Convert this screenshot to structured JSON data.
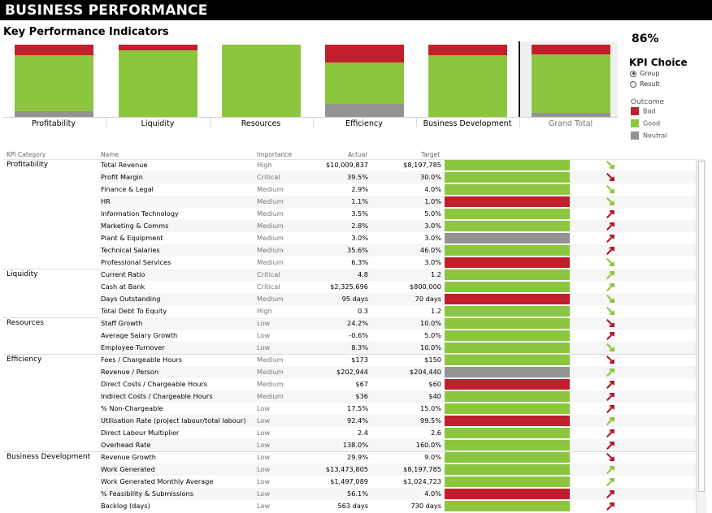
{
  "app": {
    "title": "BUSINESS PERFORMANCE"
  },
  "summary": {
    "heading": "Key Performance Indicators",
    "overall_score": "86%",
    "colors": {
      "bad": "#c11f2e",
      "good": "#8cc63f",
      "neutral": "#939393"
    },
    "bars": [
      {
        "label": "Profitability",
        "bad": 0.15,
        "good": 0.77,
        "neutral": 0.08
      },
      {
        "label": "Liquidity",
        "bad": 0.08,
        "good": 0.92,
        "neutral": 0.0
      },
      {
        "label": "Resources",
        "bad": 0.0,
        "good": 1.0,
        "neutral": 0.0
      },
      {
        "label": "Efficiency",
        "bad": 0.25,
        "good": 0.57,
        "neutral": 0.18
      },
      {
        "label": "Business Development",
        "bad": 0.15,
        "good": 0.85,
        "neutral": 0.0
      },
      {
        "label": "Grand Total",
        "bad": 0.14,
        "good": 0.8,
        "neutral": 0.06
      }
    ]
  },
  "kpi_choice": {
    "title": "KPI Choice",
    "options": [
      {
        "label": "Group",
        "selected": true
      },
      {
        "label": "Result",
        "selected": false
      }
    ]
  },
  "outcome_legend": {
    "title": "Outcome",
    "items": [
      {
        "label": "Bad",
        "color": "#c11f2e"
      },
      {
        "label": "Good",
        "color": "#8cc63f"
      },
      {
        "label": "Neutral",
        "color": "#939393"
      }
    ]
  },
  "table": {
    "columns": {
      "category": "KPI Category",
      "name": "Name",
      "importance": "Importance",
      "actual": "Actual",
      "target": "Target"
    },
    "groups": [
      {
        "category": "Profitability",
        "rows": [
          {
            "name": "Total Revenue",
            "importance": "High",
            "actual": "$10,009,837",
            "target": "$8,197,785",
            "status": "good",
            "trend": "down-green"
          },
          {
            "name": "Profit Margin",
            "importance": "Critical",
            "actual": "39.5%",
            "target": "30.0%",
            "status": "good",
            "trend": "down-red"
          },
          {
            "name": "Finance & Legal",
            "importance": "Medium",
            "actual": "2.9%",
            "target": "4.0%",
            "status": "good",
            "trend": "down-green"
          },
          {
            "name": "HR",
            "importance": "Medium",
            "actual": "1.1%",
            "target": "1.0%",
            "status": "bad",
            "trend": "down-green"
          },
          {
            "name": "Information Technology",
            "importance": "Medium",
            "actual": "3.5%",
            "target": "5.0%",
            "status": "good",
            "trend": "up-red"
          },
          {
            "name": "Marketing & Comms",
            "importance": "Medium",
            "actual": "2.8%",
            "target": "3.0%",
            "status": "good",
            "trend": "up-red"
          },
          {
            "name": "Plant & Equipment",
            "importance": "Medium",
            "actual": "3.0%",
            "target": "3.0%",
            "status": "neutral",
            "trend": "up-red"
          },
          {
            "name": "Technical Salaries",
            "importance": "Medium",
            "actual": "35.6%",
            "target": "46.0%",
            "status": "good",
            "trend": "up-red"
          },
          {
            "name": "Professional Services",
            "importance": "Medium",
            "actual": "6.3%",
            "target": "3.0%",
            "status": "bad",
            "trend": "down-green"
          }
        ]
      },
      {
        "category": "Liquidity",
        "rows": [
          {
            "name": "Current Ratio",
            "importance": "Critical",
            "actual": "4.8",
            "target": "1.2",
            "status": "good",
            "trend": "up-green"
          },
          {
            "name": "Cash at Bank",
            "importance": "Critical",
            "actual": "$2,325,696",
            "target": "$800,000",
            "status": "good",
            "trend": "up-green"
          },
          {
            "name": "Days Outstanding",
            "importance": "Medium",
            "actual": "95 days",
            "target": "70 days",
            "status": "bad",
            "trend": "down-green"
          },
          {
            "name": "Total Debt To Equity",
            "importance": "High",
            "actual": "0.3",
            "target": "1.2",
            "status": "good",
            "trend": "down-green"
          }
        ]
      },
      {
        "category": "Resources",
        "rows": [
          {
            "name": "Staff Growth",
            "importance": "Low",
            "actual": "24.2%",
            "target": "10.0%",
            "status": "good",
            "trend": "down-red"
          },
          {
            "name": "Average Salary Growth",
            "importance": "Low",
            "actual": "-0.6%",
            "target": "5.0%",
            "status": "good",
            "trend": "up-red"
          },
          {
            "name": "Employee Turnover",
            "importance": "Low",
            "actual": "8.3%",
            "target": "10.0%",
            "status": "good",
            "trend": "down-green"
          }
        ]
      },
      {
        "category": "Efficiency",
        "rows": [
          {
            "name": "Fees /  Chargeable Hours",
            "importance": "Medium",
            "actual": "$173",
            "target": "$150",
            "status": "good",
            "trend": "down-red"
          },
          {
            "name": "Revenue / Person",
            "importance": "Medium",
            "actual": "$202,944",
            "target": "$204,440",
            "status": "neutral",
            "trend": "up-green"
          },
          {
            "name": "Direct Costs / Chargeable Hours",
            "importance": "Medium",
            "actual": "$67",
            "target": "$60",
            "status": "bad",
            "trend": "up-red"
          },
          {
            "name": "Indirect Costs / Chargeable Hours",
            "importance": "Medium",
            "actual": "$36",
            "target": "$40",
            "status": "good",
            "trend": "up-red"
          },
          {
            "name": "% Non-Chargeable",
            "importance": "Low",
            "actual": "17.5%",
            "target": "15.0%",
            "status": "good",
            "trend": "up-red"
          },
          {
            "name": "Utilisation Rate (project labour/total labour)",
            "importance": "Low",
            "actual": "92.4%",
            "target": "99.5%",
            "status": "bad",
            "trend": "up-green"
          },
          {
            "name": "Direct Labour Multiplier",
            "importance": "Low",
            "actual": "2.4",
            "target": "2.6",
            "status": "good",
            "trend": "up-red"
          },
          {
            "name": "Overhead Rate",
            "importance": "Low",
            "actual": "138.0%",
            "target": "160.0%",
            "status": "good",
            "trend": "up-red"
          }
        ]
      },
      {
        "category": "Business Development",
        "rows": [
          {
            "name": "Revenue Growth",
            "importance": "Low",
            "actual": "29.9%",
            "target": "9.0%",
            "status": "good",
            "trend": "down-red"
          },
          {
            "name": "Work Generated",
            "importance": "Low",
            "actual": "$13,473,805",
            "target": "$8,197,785",
            "status": "good",
            "trend": "up-green"
          },
          {
            "name": "Work Generated Monthly Average",
            "importance": "Low",
            "actual": "$1,497,089",
            "target": "$1,024,723",
            "status": "good",
            "trend": "up-green"
          },
          {
            "name": "% Feasibility & Submissions",
            "importance": "Low",
            "actual": "56.1%",
            "target": "4.0%",
            "status": "bad",
            "trend": "up-red"
          },
          {
            "name": "Backlog (days)",
            "importance": "Low",
            "actual": "563 days",
            "target": "730 days",
            "status": "good",
            "trend": "up-red"
          }
        ]
      }
    ]
  }
}
